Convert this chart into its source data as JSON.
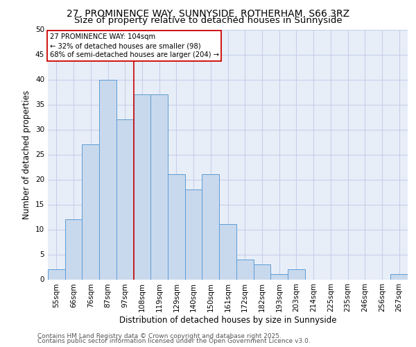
{
  "title_line1": "27, PROMINENCE WAY, SUNNYSIDE, ROTHERHAM, S66 3RZ",
  "title_line2": "Size of property relative to detached houses in Sunnyside",
  "xlabel": "Distribution of detached houses by size in Sunnyside",
  "ylabel": "Number of detached properties",
  "categories": [
    "55sqm",
    "66sqm",
    "76sqm",
    "87sqm",
    "97sqm",
    "108sqm",
    "119sqm",
    "129sqm",
    "140sqm",
    "150sqm",
    "161sqm",
    "172sqm",
    "182sqm",
    "193sqm",
    "203sqm",
    "214sqm",
    "225sqm",
    "235sqm",
    "246sqm",
    "256sqm",
    "267sqm"
  ],
  "values": [
    2,
    12,
    27,
    40,
    32,
    37,
    37,
    21,
    18,
    21,
    11,
    4,
    3,
    1,
    2,
    0,
    0,
    0,
    0,
    0,
    1
  ],
  "bar_color": "#c9d9ed",
  "bar_edge_color": "#5b9bd5",
  "grid_color": "#c5cfe8",
  "background_color": "#e8eef8",
  "annotation_text": "27 PROMINENCE WAY: 104sqm\n← 32% of detached houses are smaller (98)\n68% of semi-detached houses are larger (204) →",
  "annotation_box_color": "#ffffff",
  "annotation_box_edge": "#cc0000",
  "vline_x": 4.5,
  "vline_color": "#cc0000",
  "ylim": [
    0,
    50
  ],
  "yticks": [
    0,
    5,
    10,
    15,
    20,
    25,
    30,
    35,
    40,
    45,
    50
  ],
  "footer_line1": "Contains HM Land Registry data © Crown copyright and database right 2025.",
  "footer_line2": "Contains public sector information licensed under the Open Government Licence v3.0.",
  "title_fontsize": 10,
  "subtitle_fontsize": 9.5,
  "label_fontsize": 8.5,
  "tick_fontsize": 7.5,
  "footer_fontsize": 6.5
}
